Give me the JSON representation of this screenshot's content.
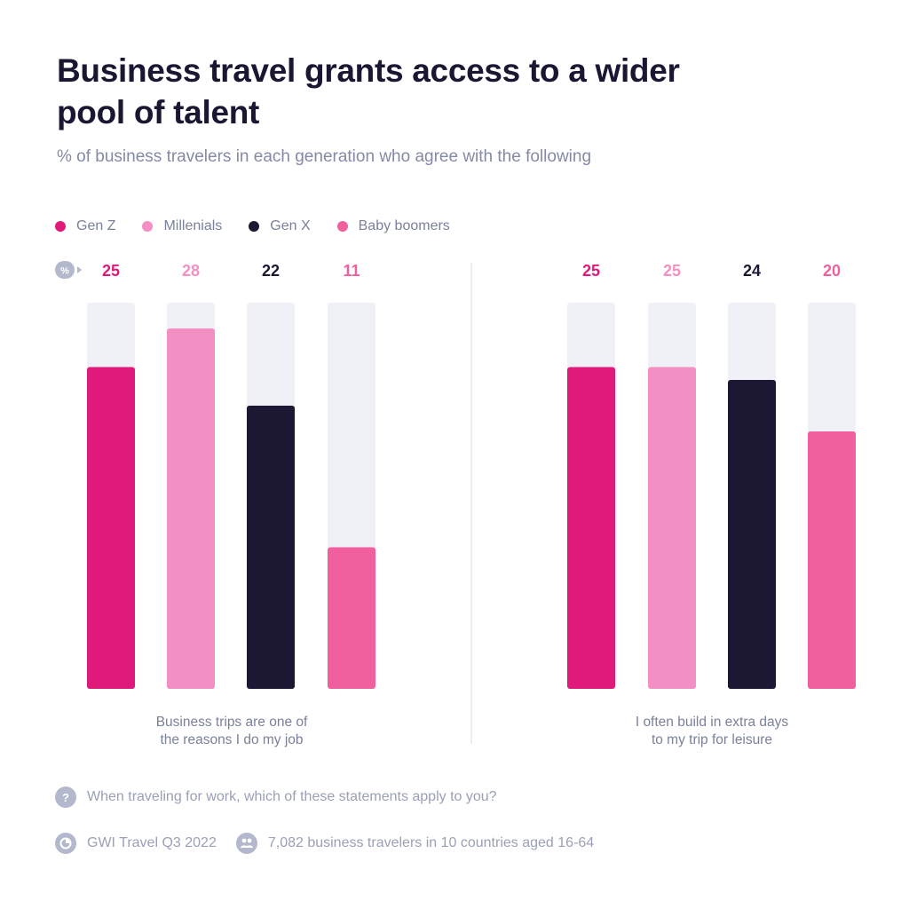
{
  "header": {
    "title": "Business travel grants access to a wider pool of talent",
    "subtitle": "% of business travelers in each generation who agree with the following"
  },
  "legend": [
    {
      "label": "Gen Z",
      "color": "#e01a7a"
    },
    {
      "label": "Millenials",
      "color": "#f48fc3"
    },
    {
      "label": "Gen X",
      "color": "#1c1733"
    },
    {
      "label": "Baby boomers",
      "color": "#f0609e"
    }
  ],
  "chart_data": {
    "type": "bar",
    "unit_badge": "%",
    "ylim": [
      0,
      30
    ],
    "groups": [
      {
        "label_lines": [
          "Business trips are one of",
          "the reasons I do my job"
        ],
        "values": [
          25,
          28,
          22,
          11
        ]
      },
      {
        "label_lines": [
          "I often build in extra days",
          "to my trip for leisure"
        ],
        "values": [
          25,
          25,
          24,
          20
        ]
      }
    ],
    "series": [
      {
        "name": "Gen Z",
        "color": "#e01a7a",
        "label_color": "#e01a7a"
      },
      {
        "name": "Millenials",
        "color": "#f48fc3",
        "label_color": "#f48fc3"
      },
      {
        "name": "Gen X",
        "color": "#1c1733",
        "label_color": "#1c1733"
      },
      {
        "name": "Baby boomers",
        "color": "#f0609e",
        "label_color": "#f0609e"
      }
    ],
    "track_color": "#f0f1f6"
  },
  "footer": {
    "question": "When traveling for work, which of these statements apply to you?",
    "question_icon": "?",
    "source": "GWI Travel Q3 2022",
    "sample": "7,082 business travelers in 10 countries aged 16-64"
  }
}
